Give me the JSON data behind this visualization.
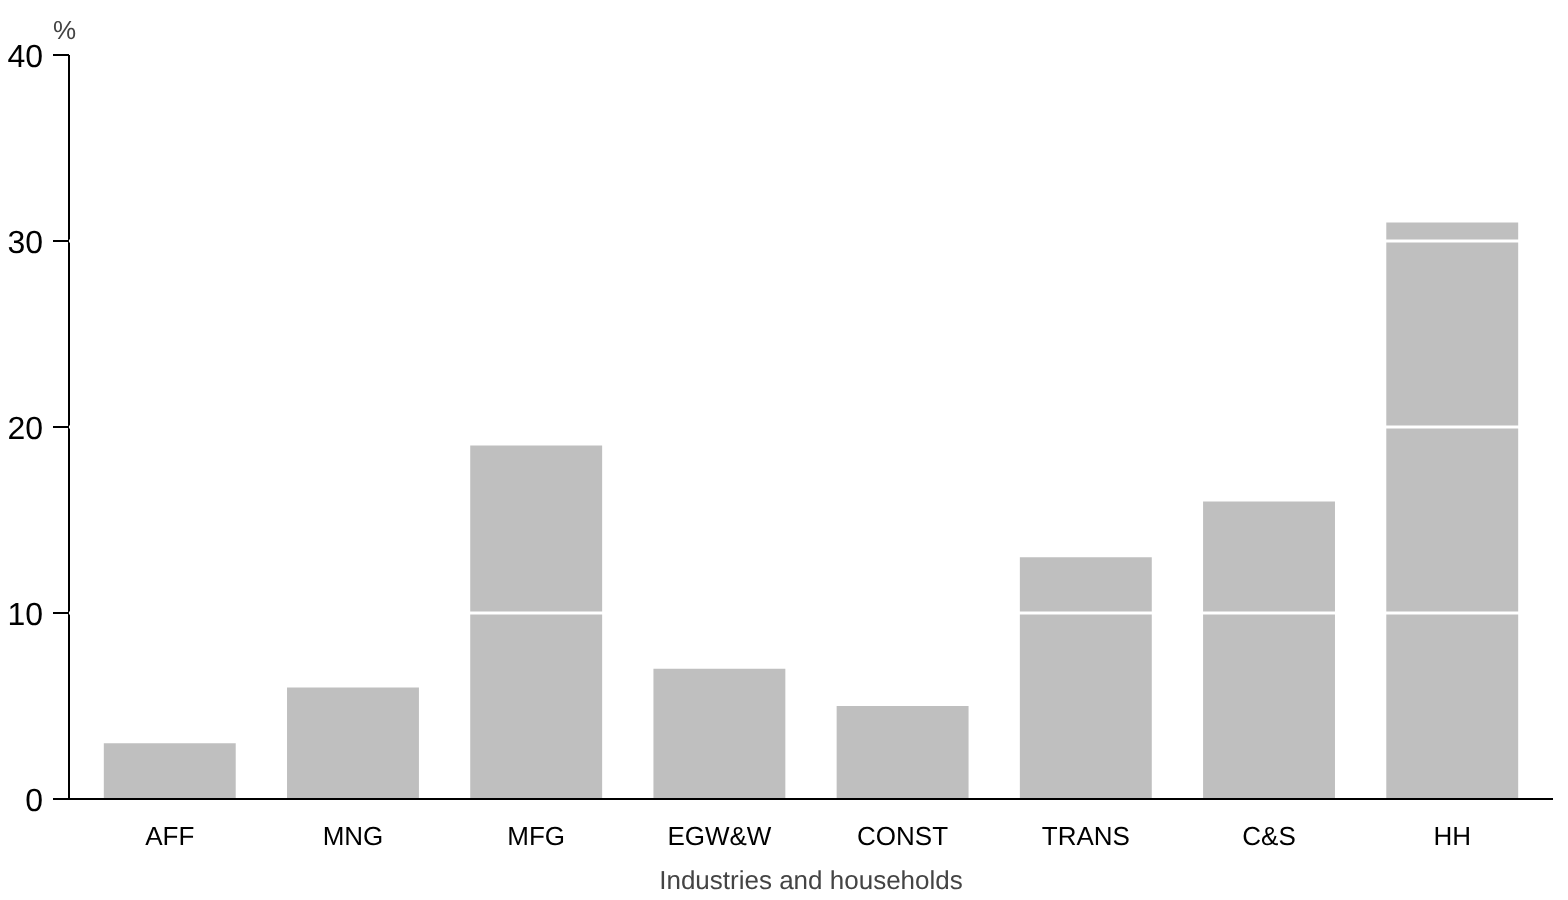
{
  "chart_data": {
    "type": "bar",
    "ylabel": "%",
    "xlabel": "Industries and households",
    "categories": [
      "AFF",
      "MNG",
      "MFG",
      "EGW&W",
      "CONST",
      "TRANS",
      "C&S",
      "HH"
    ],
    "values": [
      3,
      6,
      19,
      7,
      5,
      13,
      16,
      31
    ],
    "color": "#bfbfbf",
    "ylim": [
      0,
      40
    ],
    "yticks": [
      0,
      10,
      20,
      30,
      40
    ],
    "grid": "y"
  }
}
